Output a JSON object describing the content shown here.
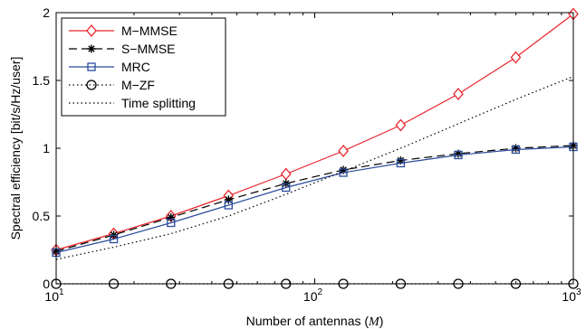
{
  "chart_data": {
    "type": "line",
    "xlabel": "Number of antennas (",
    "xlabel_var": "M",
    "xlabel_end": ")",
    "ylabel": "Spectral efficiency [bit/s/Hz/user]",
    "xscale": "log",
    "xlim": [
      10,
      1000
    ],
    "ylim": [
      0,
      2
    ],
    "grid": false,
    "legend_position": "top-left",
    "x_ticks": [
      {
        "value": 10,
        "base": "10",
        "exp": "1"
      },
      {
        "value": 100,
        "base": "10",
        "exp": "2"
      },
      {
        "value": 1000,
        "base": "10",
        "exp": "3"
      }
    ],
    "y_ticks": [
      {
        "value": 0,
        "label": "0"
      },
      {
        "value": 0.5,
        "label": "0.5"
      },
      {
        "value": 1,
        "label": "1"
      },
      {
        "value": 1.5,
        "label": "1.5"
      },
      {
        "value": 2,
        "label": "2"
      }
    ],
    "x": [
      10,
      16.7,
      27.8,
      46.4,
      77.4,
      129,
      215,
      359,
      599,
      1000
    ],
    "series": [
      {
        "name": "M−MMSE",
        "color": "#e8242b",
        "dash": "none",
        "marker": "diamond",
        "values": [
          0.25,
          0.37,
          0.5,
          0.65,
          0.81,
          0.98,
          1.17,
          1.4,
          1.67,
          1.99
        ]
      },
      {
        "name": "S−MMSE",
        "color": "#000000",
        "dash": "9,5",
        "marker": "asterisk",
        "values": [
          0.24,
          0.36,
          0.49,
          0.62,
          0.74,
          0.84,
          0.91,
          0.96,
          1.0,
          1.02
        ]
      },
      {
        "name": "MRC",
        "color": "#2a4b9b",
        "dash": "none",
        "marker": "square",
        "values": [
          0.23,
          0.33,
          0.45,
          0.58,
          0.71,
          0.82,
          0.89,
          0.95,
          0.99,
          1.01
        ]
      },
      {
        "name": "M−ZF",
        "color": "#000000",
        "dash": "1.5,3",
        "marker": "circle",
        "values": [
          0,
          0,
          0,
          0,
          0,
          0,
          0,
          0,
          0,
          0
        ]
      },
      {
        "name": "Time splitting",
        "color": "#000000",
        "dash": "1.5,3",
        "marker": "none",
        "values": [
          0.18,
          0.27,
          0.37,
          0.5,
          0.66,
          0.83,
          1.0,
          1.18,
          1.36,
          1.53
        ]
      }
    ]
  }
}
